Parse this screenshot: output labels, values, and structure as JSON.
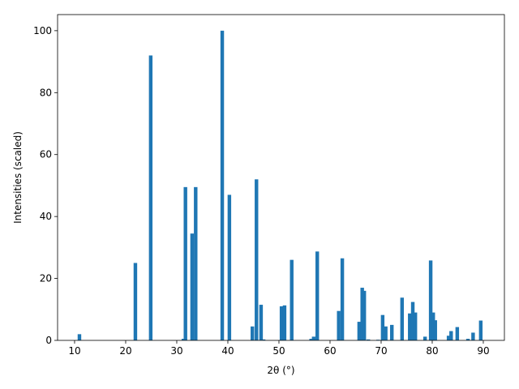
{
  "chart_data": {
    "type": "bar",
    "xlabel": "2θ (°)",
    "ylabel": "Intensities (scaled)",
    "color": "#1f77b4",
    "bar_width": 0.7,
    "x": [
      10.95,
      21.9,
      24.9,
      31.3,
      31.7,
      33.0,
      33.7,
      38.9,
      40.3,
      44.8,
      45.6,
      46.5,
      47.0,
      50.5,
      51.1,
      52.5,
      56.3,
      56.8,
      57.5,
      61.7,
      62.4,
      65.7,
      66.3,
      66.7,
      67.5,
      69.4,
      70.3,
      70.9,
      72.1,
      74.1,
      75.6,
      76.2,
      76.7,
      78.6,
      79.7,
      80.2,
      80.6,
      83.2,
      83.7,
      84.9,
      87.0,
      88.0,
      89.5
    ],
    "values": [
      2,
      25,
      92,
      0.5,
      49.5,
      34.5,
      49.5,
      100,
      47,
      4.5,
      52,
      11.5,
      0.3,
      11,
      11.3,
      26,
      0.5,
      1.2,
      28.7,
      9.5,
      26.5,
      6,
      17,
      16,
      0.3,
      0.2,
      8.2,
      4.5,
      5,
      13.8,
      8.7,
      12.4,
      9,
      1.2,
      25.8,
      9,
      6.5,
      1.5,
      3,
      4.3,
      0.5,
      2.5,
      6.4
    ],
    "xlim": [
      6.67,
      94.13
    ],
    "ylim": [
      0,
      105.2
    ],
    "xticks": [
      10,
      20,
      30,
      40,
      50,
      60,
      70,
      80,
      90
    ],
    "yticks": [
      0,
      20,
      40,
      60,
      80,
      100
    ]
  }
}
